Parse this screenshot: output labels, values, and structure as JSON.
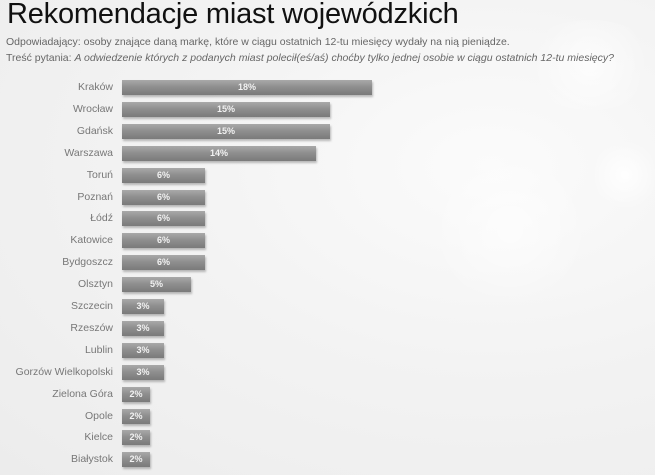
{
  "header": {
    "title": "Rekomendacje  miast wojewódzkich",
    "respondents_label": "Odpowiadający:",
    "respondents_text": "osoby  znające daną markę, które w ciągu ostatnich  12-tu  miesięcy  wydały  na nią pieniądze.",
    "question_label": "Treść pytania:",
    "question_text": "A odwiedzenie których  z podanych miast polecił(eś/aś)  choćby tylko jednej osobie  w ciągu ostatnich 12-tu miesięcy?"
  },
  "colors": {
    "bar": "#8f8f8f",
    "bar_label": "#f2f2f2",
    "category_label": "#777777",
    "title": "#111111"
  },
  "chart_data": {
    "type": "bar",
    "orientation": "horizontal",
    "title": "Rekomendacje miast wojewódzkich",
    "xlabel": "",
    "ylabel": "",
    "grid": false,
    "legend": null,
    "value_format": "percent",
    "categories": [
      "Kraków",
      "Wrocław",
      "Gdańsk",
      "Warszawa",
      "Toruń",
      "Poznań",
      "Łódź",
      "Katowice",
      "Bydgoszcz",
      "Olsztyn",
      "Szczecin",
      "Rzeszów",
      "Lublin",
      "Gorzów Wielkopolski",
      "Zielona Góra",
      "Opole",
      "Kielce",
      "Białystok"
    ],
    "values": [
      18,
      15,
      15,
      14,
      6,
      6,
      6,
      6,
      6,
      5,
      3,
      3,
      3,
      3,
      2,
      2,
      2,
      2
    ],
    "value_labels": [
      "18%",
      "15%",
      "15%",
      "14%",
      "6%",
      "6%",
      "6%",
      "6%",
      "6%",
      "5%",
      "3%",
      "3%",
      "3%",
      "3%",
      "2%",
      "2%",
      "2%",
      "2%"
    ]
  }
}
